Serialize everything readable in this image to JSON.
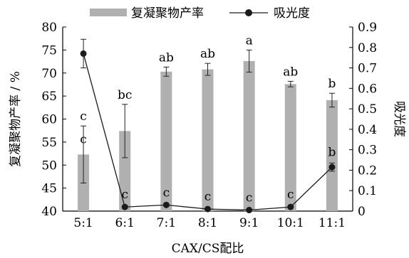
{
  "chart_data": {
    "type": "bar+line",
    "categories": [
      "5:1",
      "6:1",
      "7:1",
      "8:1",
      "9:1",
      "10:1",
      "11:1"
    ],
    "xlabel": "CAX/CS配比",
    "series": [
      {
        "name": "复凝聚物产率",
        "type": "bar",
        "axis": "left",
        "values": [
          52.3,
          57.4,
          70.3,
          70.8,
          72.6,
          67.6,
          64.1
        ],
        "error": [
          6.2,
          5.8,
          1.0,
          1.3,
          2.4,
          0.6,
          1.5
        ],
        "labels": [
          "c",
          "bc",
          "ab",
          "ab",
          "a",
          "ab",
          "b"
        ]
      },
      {
        "name": "吸光度",
        "type": "line",
        "axis": "right",
        "values": [
          0.77,
          0.02,
          0.03,
          0.01,
          0.005,
          0.02,
          0.215
        ],
        "error": [
          0.07,
          0.0,
          0.0,
          0.0,
          0.0,
          0.0,
          0.02
        ],
        "labels": [
          "c",
          "c",
          "c",
          "c",
          "c",
          "c",
          "b"
        ]
      }
    ],
    "y_left": {
      "label": "复凝聚物产率 / %",
      "ylim": [
        40,
        80
      ],
      "ticks": [
        "40",
        "45",
        "50",
        "55",
        "60",
        "65",
        "70",
        "75",
        "80"
      ]
    },
    "y_right": {
      "label": "吸光度",
      "ylim": [
        0,
        0.9
      ],
      "ticks": [
        "0",
        "0.1",
        "0.2",
        "0.3",
        "0.4",
        "0.5",
        "0.6",
        "0.7",
        "0.8",
        "0.9"
      ]
    },
    "bar_labels": [
      "c",
      "bc",
      "ab",
      "ab",
      "a",
      "ab",
      "b"
    ],
    "line_labels": [
      "c",
      "c",
      "c",
      "c",
      "c",
      "c",
      "b"
    ],
    "grid": false,
    "legend_position": "top",
    "colors": {
      "bar": "#b0b0b0",
      "line": "#1a1a1a",
      "axis": "#000000"
    }
  }
}
